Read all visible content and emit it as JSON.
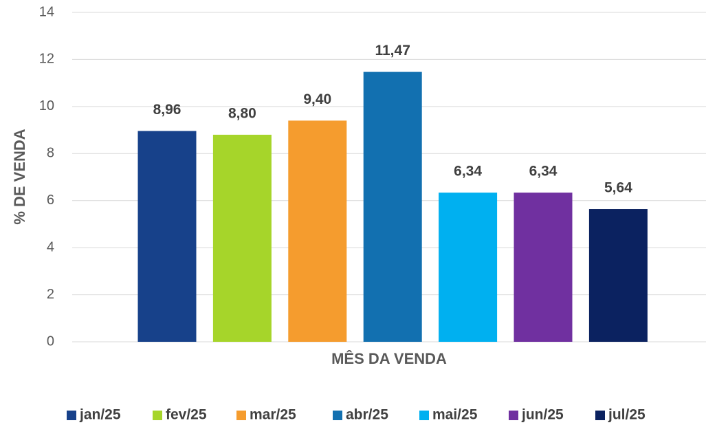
{
  "chart_data": {
    "type": "bar",
    "xlabel": "MÊS DA VENDA",
    "ylabel": "% DE VENDA",
    "ylim": [
      0,
      14
    ],
    "yticks": [
      0,
      2,
      4,
      6,
      8,
      10,
      12,
      14
    ],
    "grid": true,
    "legend": "bottom",
    "series": [
      {
        "name": "jan/25",
        "color": "#17418a",
        "values": [
          8.96
        ],
        "value_labels": [
          "8,96"
        ]
      },
      {
        "name": "fev/25",
        "color": "#a6d52a",
        "values": [
          8.8
        ],
        "value_labels": [
          "8,80"
        ]
      },
      {
        "name": "mar/25",
        "color": "#f59c2e",
        "values": [
          9.4
        ],
        "value_labels": [
          "9,40"
        ]
      },
      {
        "name": "abr/25",
        "color": "#1270b0",
        "values": [
          11.47
        ],
        "value_labels": [
          "11,47"
        ]
      },
      {
        "name": "mai/25",
        "color": "#00b0f0",
        "values": [
          6.34
        ],
        "value_labels": [
          "6,34"
        ]
      },
      {
        "name": "jun/25",
        "color": "#7030a0",
        "values": [
          6.34
        ],
        "value_labels": [
          "6,34"
        ]
      },
      {
        "name": "jul/25",
        "color": "#0b2260",
        "values": [
          5.64
        ],
        "value_labels": [
          "5,64"
        ]
      }
    ]
  }
}
